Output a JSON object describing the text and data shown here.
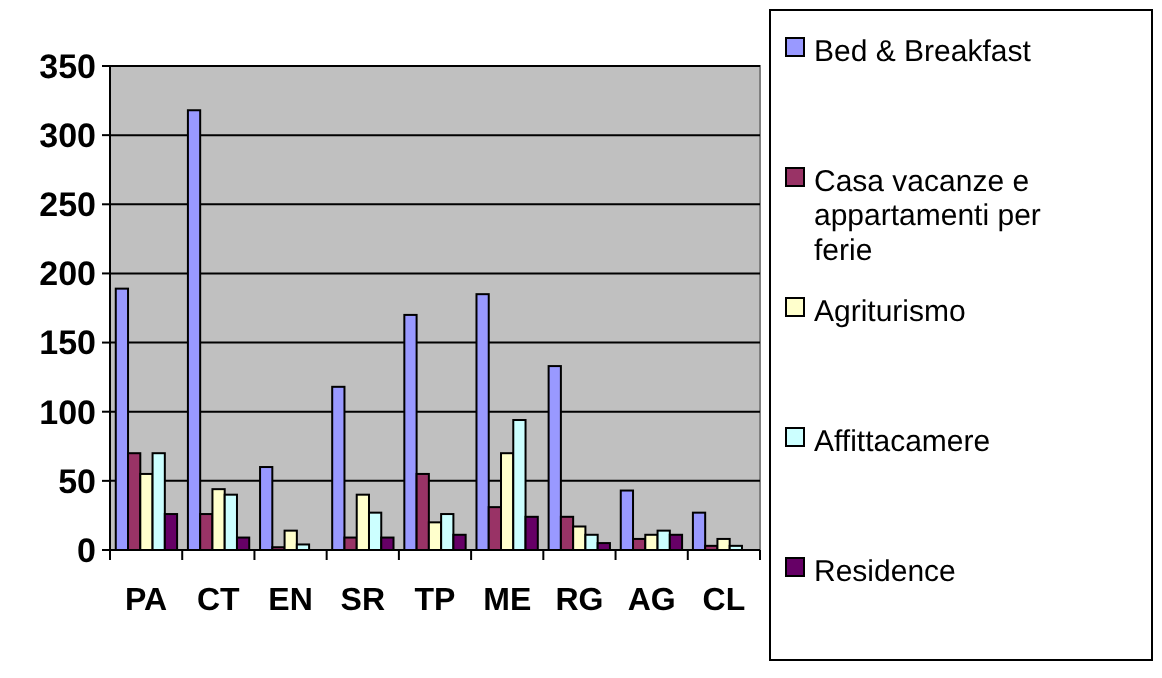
{
  "chart_data": {
    "type": "bar",
    "categories": [
      "PA",
      "CT",
      "EN",
      "SR",
      "TP",
      "ME",
      "RG",
      "AG",
      "CL"
    ],
    "series": [
      {
        "name": "Bed & Breakfast",
        "color": "#9999ff",
        "values": [
          189,
          318,
          60,
          118,
          170,
          185,
          133,
          43,
          27
        ]
      },
      {
        "name": "Casa vacanze e appartamenti per ferie",
        "color": "#993366",
        "values": [
          70,
          26,
          2,
          9,
          55,
          31,
          24,
          8,
          3
        ]
      },
      {
        "name": "Agriturismo",
        "color": "#ffffcc",
        "values": [
          55,
          44,
          14,
          40,
          20,
          70,
          17,
          11,
          8
        ]
      },
      {
        "name": "Affittacamere",
        "color": "#ccffff",
        "values": [
          70,
          40,
          4,
          27,
          26,
          94,
          11,
          14,
          3
        ]
      },
      {
        "name": "Residence",
        "color": "#660066",
        "values": [
          26,
          9,
          0,
          9,
          11,
          24,
          5,
          11,
          0
        ]
      }
    ],
    "ylim": [
      0,
      350
    ],
    "yticks": [
      0,
      50,
      100,
      150,
      200,
      250,
      300,
      350
    ],
    "grid": "y",
    "legend": "right"
  }
}
